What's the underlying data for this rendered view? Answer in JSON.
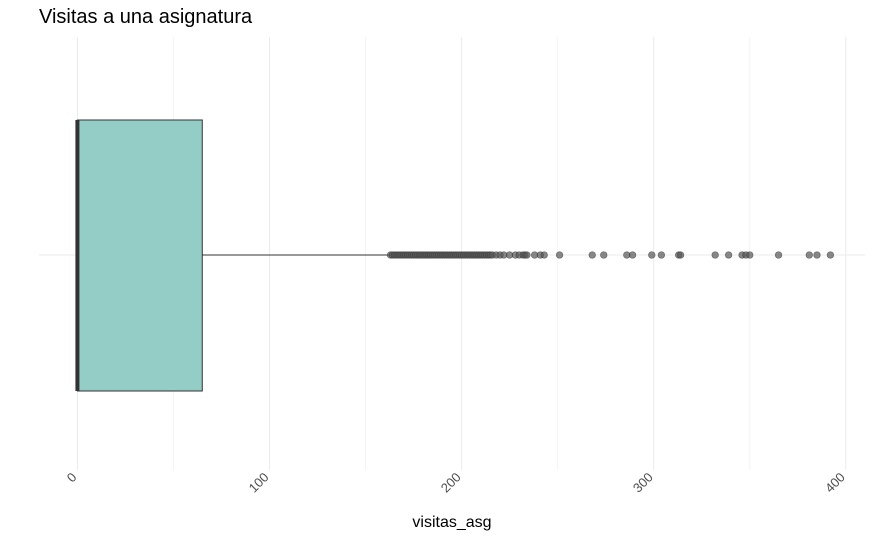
{
  "chart_data": {
    "type": "boxplot",
    "orientation": "horizontal",
    "title": "Visitas a una asignatura",
    "xlabel": "visitas_asg",
    "ylabel": "",
    "xlim": [
      -20,
      410
    ],
    "x_ticks": [
      0,
      100,
      200,
      300,
      400
    ],
    "x_tick_labels": [
      "0",
      "100",
      "200",
      "300",
      "400"
    ],
    "grid": true,
    "box": {
      "min": 0,
      "q1": 0,
      "median": 0,
      "q3": 65,
      "whisker_high": 163,
      "fill": "#93cdc5",
      "median_color": "#333333"
    },
    "outliers": [
      163,
      164,
      165,
      166,
      167,
      168,
      169,
      170,
      171,
      172,
      173,
      174,
      175,
      176,
      177,
      178,
      179,
      180,
      181,
      182,
      183,
      184,
      185,
      186,
      187,
      188,
      189,
      190,
      191,
      192,
      193,
      194,
      195,
      196,
      197,
      198,
      199,
      200,
      201,
      202,
      203,
      204,
      205,
      206,
      207,
      208,
      209,
      210,
      211,
      212,
      213,
      214,
      215,
      216,
      218,
      220,
      222,
      225,
      228,
      230,
      232,
      233,
      234,
      238,
      241,
      243,
      251,
      268,
      274,
      286,
      289,
      299,
      304,
      313,
      314,
      332,
      339,
      346,
      348,
      350,
      365,
      381,
      385,
      392
    ],
    "outlier_color": "#555555"
  }
}
